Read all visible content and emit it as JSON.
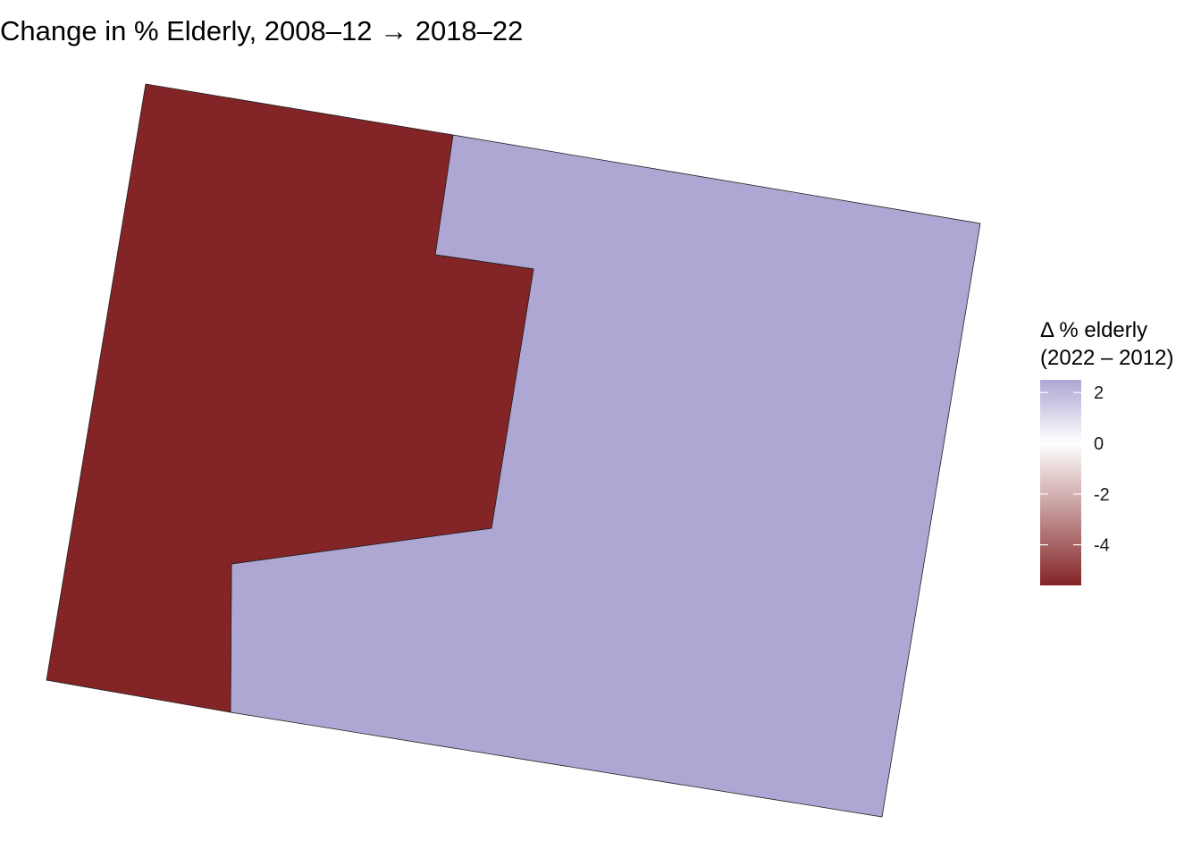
{
  "chart_data": {
    "type": "choropleth",
    "title": "Change in % Elderly, 2008–12 → 2018–22",
    "legend": {
      "title_lines": [
        "Δ % elderly",
        "(2022 – 2012)"
      ],
      "placement": "right",
      "domain": [
        -5.6,
        2.5
      ],
      "ticks": [
        {
          "value": 2,
          "label": "2"
        },
        {
          "value": 0,
          "label": "0"
        },
        {
          "value": -2,
          "label": "-2"
        },
        {
          "value": -4,
          "label": "-4"
        }
      ],
      "colors": {
        "low": "#832426",
        "mid": "#ffffff",
        "high": "#aea6d3"
      }
    },
    "regions": [
      {
        "id": "west-region",
        "value": -5.6,
        "fill": "#832426"
      },
      {
        "id": "east-region",
        "value": 2.5,
        "fill": "#aea6d3"
      }
    ],
    "border_color": "#222222"
  }
}
